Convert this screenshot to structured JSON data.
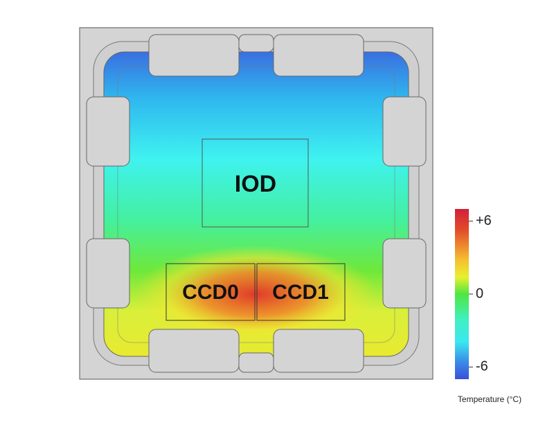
{
  "package": {
    "iod_label": "IOD",
    "ccd0_label": "CCD0",
    "ccd1_label": "CCD1"
  },
  "colorbar": {
    "title": "Temperature (°C)",
    "lim": [
      -7,
      7
    ],
    "ticks": [
      {
        "value": 6,
        "label": "+6"
      },
      {
        "value": 0,
        "label": "0"
      },
      {
        "value": -6,
        "label": "-6"
      }
    ]
  }
}
